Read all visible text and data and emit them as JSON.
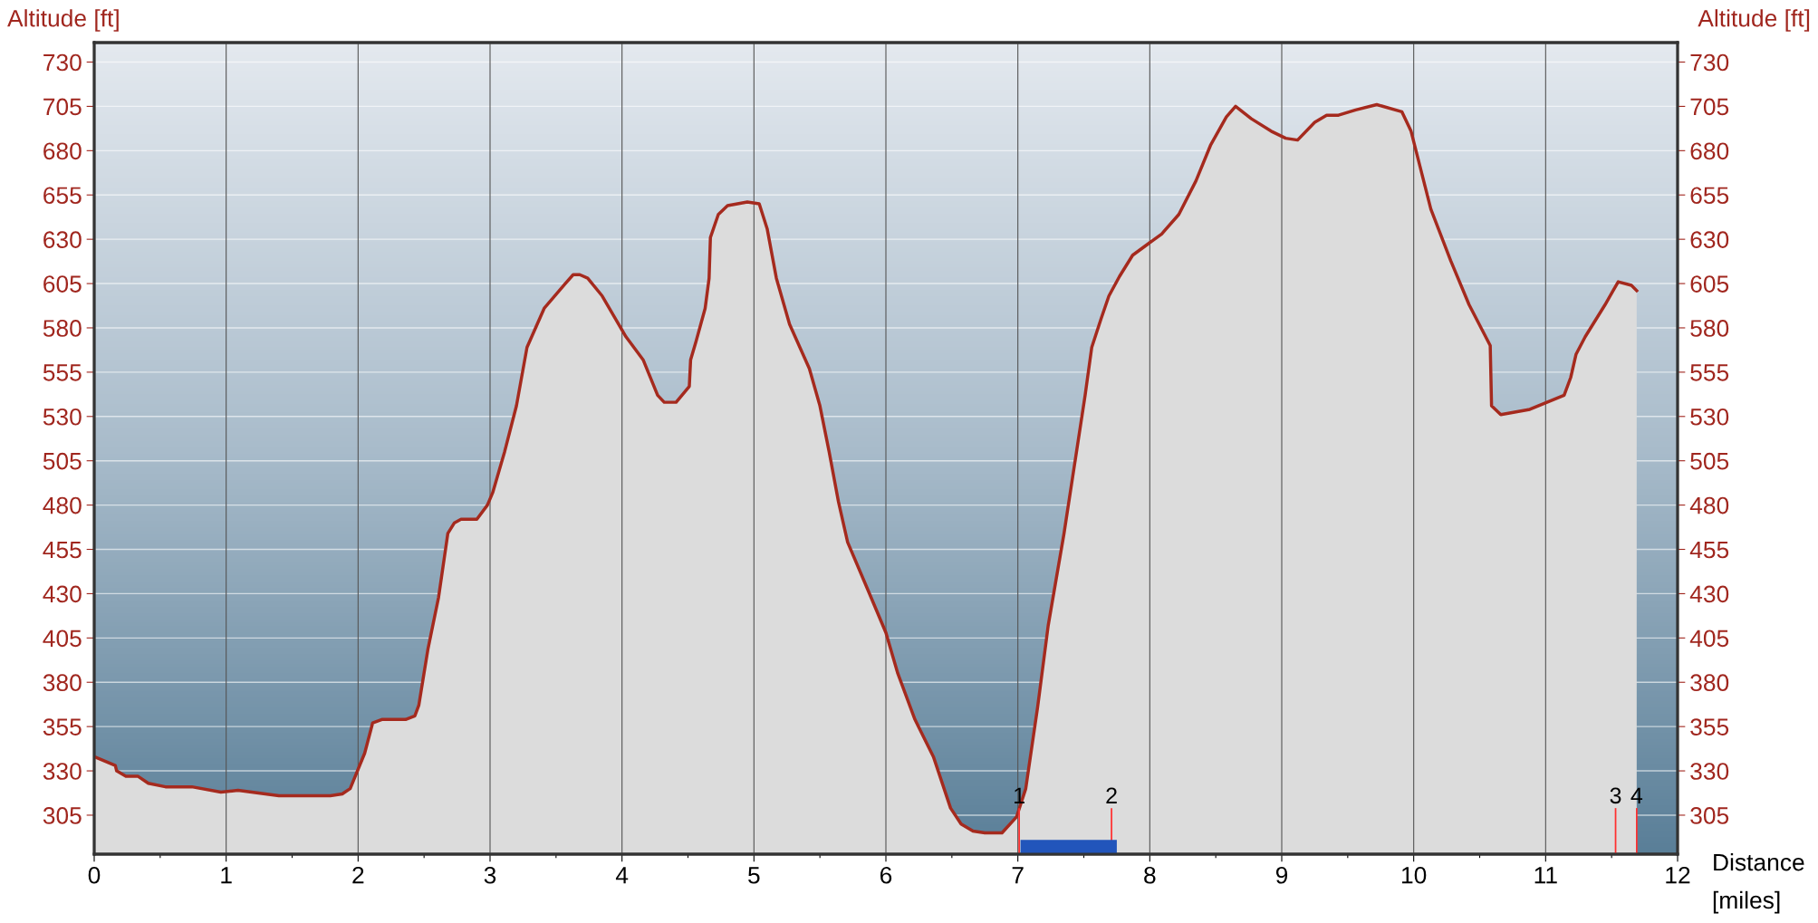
{
  "chart_data": {
    "type": "area",
    "ylabel": "Altitude [ft]",
    "y2label": "Altitude [ft]",
    "xlabel": "Distance\n[miles]",
    "xlim": [
      0,
      12
    ],
    "xticks": [
      0,
      {
        "value": 0.5,
        "label": null
      },
      1,
      {
        "value": 1.5,
        "label": null
      },
      2,
      {
        "value": 2.5,
        "label": null
      },
      3,
      {
        "value": 3.5,
        "label": null
      },
      4,
      {
        "value": 4.5,
        "label": null
      },
      5,
      {
        "value": 5.5,
        "label": null
      },
      6,
      {
        "value": 6.5,
        "label": null
      },
      7,
      {
        "value": 7.5,
        "label": null
      },
      8,
      {
        "value": 8.5,
        "label": null
      },
      9,
      {
        "value": 9.5,
        "label": null
      },
      10,
      {
        "value": 10.5,
        "label": null
      },
      11,
      {
        "value": 11.5,
        "label": null
      },
      12
    ],
    "ylim": [
      283,
      741
    ],
    "yticks": [
      305,
      330,
      355,
      380,
      405,
      430,
      455,
      480,
      505,
      530,
      555,
      580,
      605,
      630,
      655,
      680,
      705,
      730
    ],
    "y2lim": [
      283,
      741
    ],
    "y2ticks": [
      305,
      330,
      355,
      380,
      405,
      430,
      455,
      480,
      505,
      530,
      555,
      580,
      605,
      630,
      655,
      680,
      705,
      730
    ],
    "grid": true,
    "legend": false,
    "series": [
      {
        "color": "#a52a1e",
        "x": [
          0,
          0.16,
          0.17,
          0.24,
          0.33,
          0.41,
          0.54,
          0.74,
          0.96,
          1.09,
          1.4,
          1.79,
          1.88,
          1.94,
          2.05,
          2.11,
          2.18,
          2.36,
          2.43,
          2.46,
          2.53,
          2.61,
          2.68,
          2.73,
          2.78,
          2.9,
          2.98,
          3.02,
          3.11,
          3.2,
          3.28,
          3.41,
          3.57,
          3.63,
          3.68,
          3.74,
          3.85,
          4.03,
          4.16,
          4.27,
          4.32,
          4.41,
          4.51,
          4.52,
          4.56,
          4.63,
          4.66,
          4.67,
          4.73,
          4.8,
          4.95,
          5.04,
          5.1,
          5.17,
          5.27,
          5.42,
          5.5,
          5.57,
          5.64,
          5.71,
          5.87,
          6.0,
          6.09,
          6.22,
          6.36,
          6.49,
          6.57,
          6.66,
          6.75,
          6.88,
          6.99,
          7.06,
          7.15,
          7.23,
          7.35,
          7.43,
          7.51,
          7.56,
          7.63,
          7.69,
          7.77,
          7.87,
          7.98,
          8.09,
          8.22,
          8.35,
          8.46,
          8.58,
          8.65,
          8.77,
          8.92,
          9.03,
          9.12,
          9.25,
          9.34,
          9.43,
          9.56,
          9.72,
          9.91,
          9.98,
          10.13,
          10.28,
          10.42,
          10.58,
          10.59,
          10.66,
          10.88,
          11.14,
          11.19,
          11.23,
          11.3,
          11.45,
          11.55,
          11.65,
          11.69
        ],
        "values": [
          338,
          333,
          330,
          327,
          327,
          323,
          321,
          321,
          318,
          319,
          316,
          316,
          317,
          320,
          340,
          357,
          359,
          359,
          361,
          367,
          399,
          428,
          464,
          470,
          472,
          472,
          480,
          487,
          510,
          536,
          569,
          591,
          605,
          610,
          610,
          608,
          598,
          575,
          562,
          542,
          538,
          538,
          547,
          562,
          572,
          591,
          608,
          631,
          644,
          649,
          651,
          650,
          636,
          608,
          582,
          557,
          536,
          510,
          482,
          459,
          431,
          408,
          385,
          359,
          338,
          309,
          300,
          296,
          295,
          295,
          304,
          320,
          366,
          412,
          464,
          503,
          542,
          569,
          585,
          598,
          609,
          621,
          627,
          633,
          644,
          663,
          683,
          699,
          705,
          698,
          691,
          687,
          686,
          696,
          700,
          700,
          703,
          706,
          702,
          691,
          647,
          618,
          593,
          570,
          536,
          531,
          534,
          542,
          552,
          565,
          575,
          593,
          606,
          604,
          601
        ]
      },
      {
        "type": "bar",
        "color": "#ff3030",
        "x": [
          7.01,
          7.71,
          11.53,
          11.69
        ],
        "base": [
          283,
          283,
          283,
          283
        ],
        "values": [
          26,
          26,
          26,
          26
        ]
      },
      {
        "type": "bar",
        "color": "#2255bb",
        "x": [
          7.385
        ],
        "base": [
          283
        ],
        "values": [
          8
        ]
      }
    ],
    "annotations": [
      {
        "text": "1",
        "x": 7.01,
        "y": 309
      },
      {
        "text": "2",
        "x": 7.71,
        "y": 309
      },
      {
        "text": "3",
        "x": 11.53,
        "y": 309
      },
      {
        "text": "4",
        "x": 11.69,
        "y": 309
      }
    ]
  }
}
